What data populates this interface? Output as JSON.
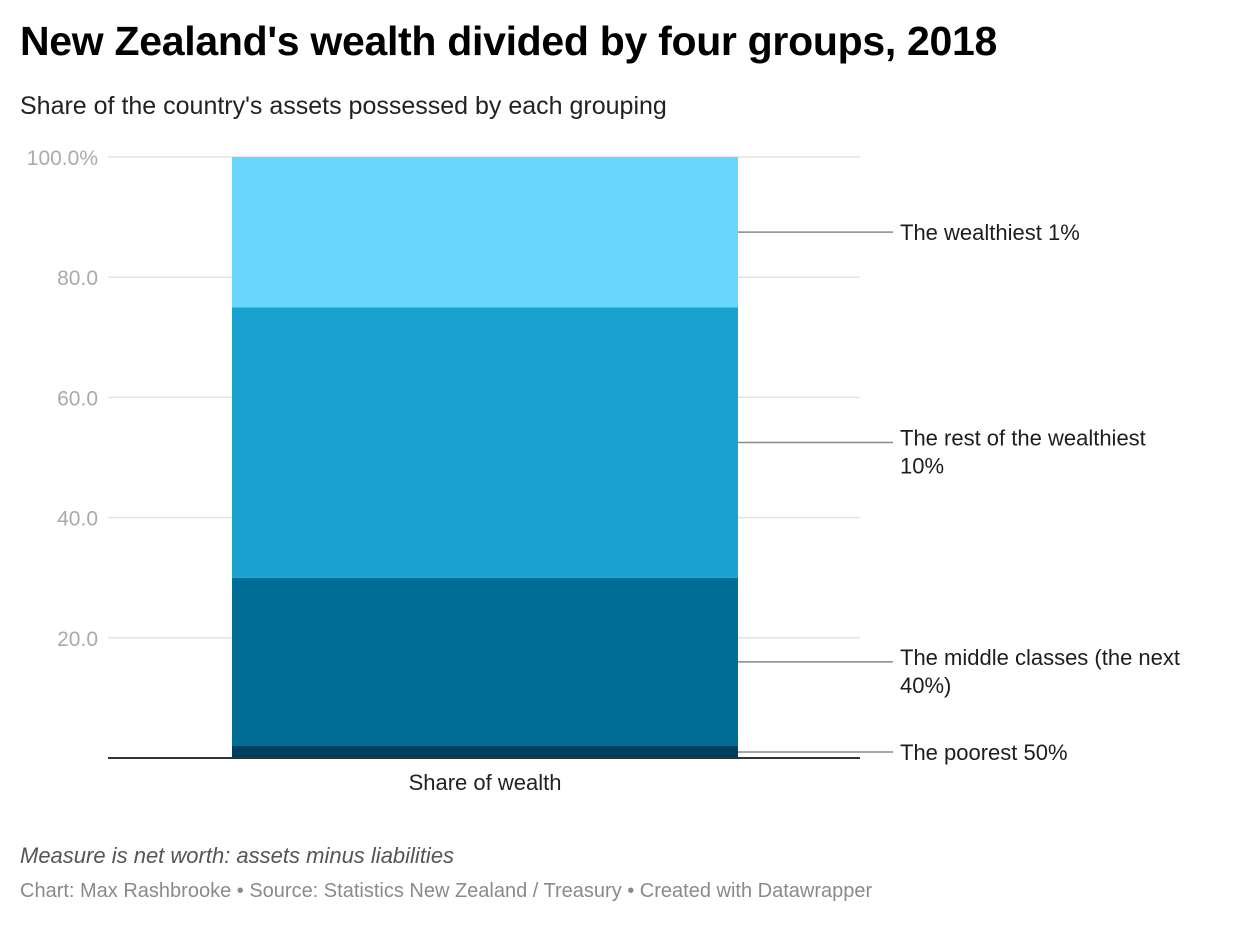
{
  "header": {
    "title": "New Zealand's wealth divided by four groups, 2018",
    "subtitle": "Share of the country's assets possessed by each grouping"
  },
  "chart_data": {
    "type": "bar",
    "stacked": true,
    "categories": [
      "Share of wealth"
    ],
    "ylim": [
      0,
      100
    ],
    "yticks": [
      {
        "value": 20,
        "label": "20.0"
      },
      {
        "value": 40,
        "label": "40.0"
      },
      {
        "value": 60,
        "label": "60.0"
      },
      {
        "value": 80,
        "label": "80.0"
      },
      {
        "value": 100,
        "label": "100.0%"
      }
    ],
    "grid": true,
    "xlabel": "",
    "ylabel": "",
    "series": [
      {
        "name": "The poorest 50%",
        "label_lines": [
          "The poorest 50%"
        ],
        "values": [
          2
        ],
        "color": "#00405f"
      },
      {
        "name": "The middle classes (the next 40%)",
        "label_lines": [
          "The middle classes (the next",
          "40%)"
        ],
        "values": [
          28
        ],
        "color": "#006d96"
      },
      {
        "name": "The rest of the wealthiest 10%",
        "label_lines": [
          "The rest of the wealthiest",
          "10%"
        ],
        "values": [
          45
        ],
        "color": "#1aa2d0"
      },
      {
        "name": "The wealthiest 1%",
        "label_lines": [
          "The wealthiest 1%"
        ],
        "values": [
          25
        ],
        "color": "#69d6fe"
      }
    ]
  },
  "notes": "Measure is net worth: assets minus liabilities",
  "footer": "Chart: Max Rashbrooke • Source: Statistics New Zealand / Treasury • Created with Datawrapper"
}
